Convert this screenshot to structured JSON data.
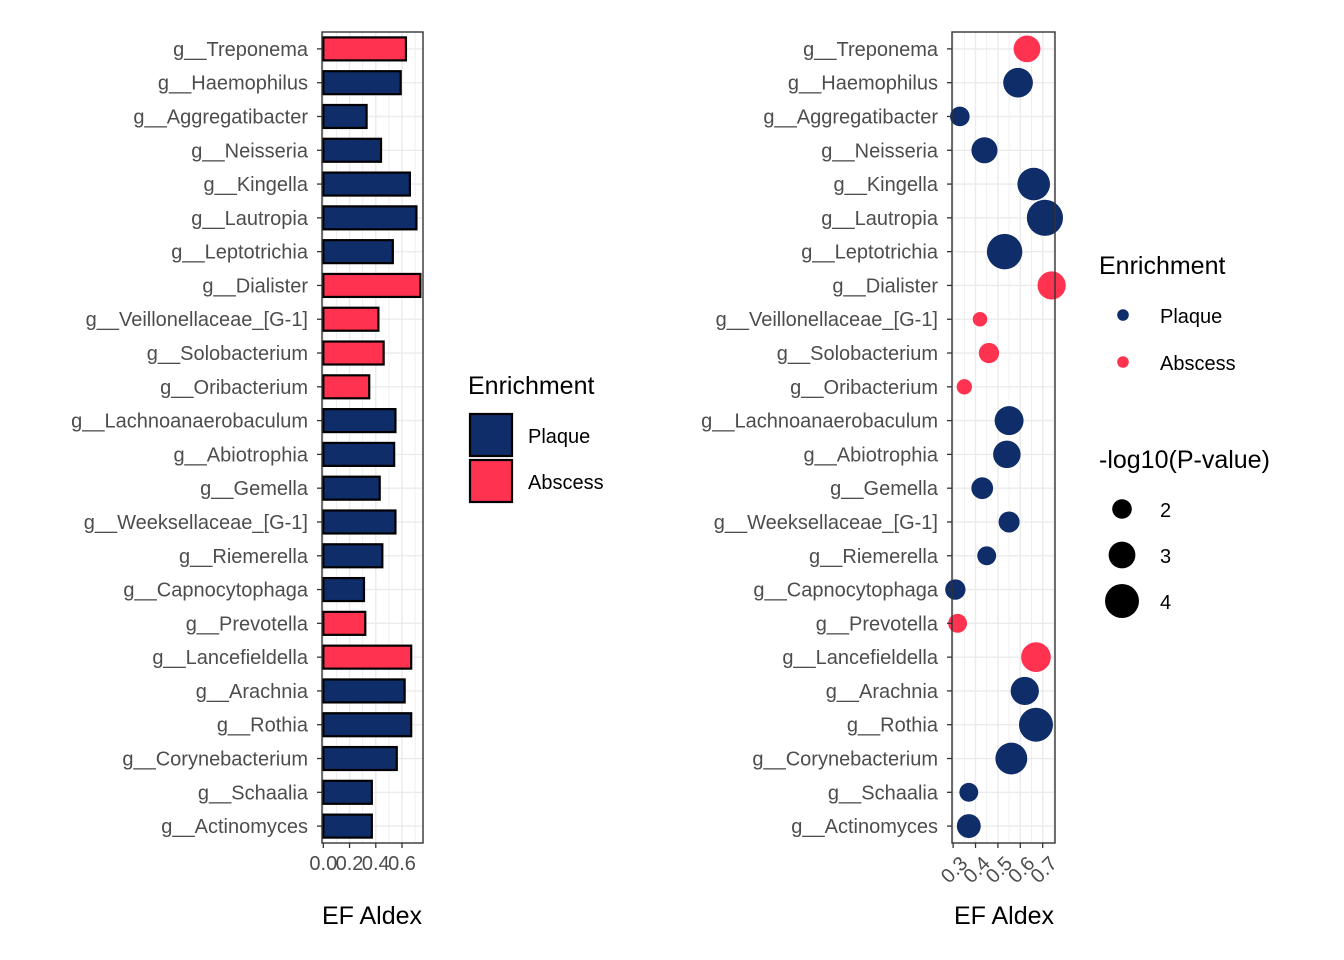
{
  "chart_data": [
    {
      "type": "bar",
      "orientation": "horizontal",
      "xlabel": "EF Aldex",
      "ylabel": "",
      "xlim": [
        -0.01,
        0.76
      ],
      "x_ticks": [
        "0.0",
        "0.2",
        "0.4",
        "0.6"
      ],
      "grid": true,
      "legend_placement": "right",
      "legend": {
        "title": "Enrichment",
        "entries": [
          {
            "label": "Plaque",
            "color": "#0f2d69"
          },
          {
            "label": "Abscess",
            "color": "#ff3250"
          }
        ]
      },
      "categories": [
        "g__Treponema",
        "g__Haemophilus",
        "g__Aggregatibacter",
        "g__Neisseria",
        "g__Kingella",
        "g__Lautropia",
        "g__Leptotrichia",
        "g__Dialister",
        "g__Veillonellaceae_[G-1]",
        "g__Solobacterium",
        "g__Oribacterium",
        "g__Lachnoanaerobaculum",
        "g__Abiotrophia",
        "g__Gemella",
        "g__Weeksellaceae_[G-1]",
        "g__Riemerella",
        "g__Capnocytophaga",
        "g__Prevotella",
        "g__Lancefieldella",
        "g__Arachnia",
        "g__Rothia",
        "g__Corynebacterium",
        "g__Schaalia",
        "g__Actinomyces"
      ],
      "values": [
        0.63,
        0.59,
        0.33,
        0.44,
        0.66,
        0.71,
        0.53,
        0.74,
        0.42,
        0.46,
        0.35,
        0.55,
        0.54,
        0.43,
        0.55,
        0.45,
        0.31,
        0.32,
        0.67,
        0.62,
        0.67,
        0.56,
        0.37,
        0.37
      ],
      "enrichment": [
        "Abscess",
        "Plaque",
        "Plaque",
        "Plaque",
        "Plaque",
        "Plaque",
        "Plaque",
        "Abscess",
        "Abscess",
        "Abscess",
        "Abscess",
        "Plaque",
        "Plaque",
        "Plaque",
        "Plaque",
        "Plaque",
        "Plaque",
        "Abscess",
        "Abscess",
        "Plaque",
        "Plaque",
        "Plaque",
        "Plaque",
        "Plaque"
      ]
    },
    {
      "type": "scatter",
      "xlabel": "EF Aldex",
      "ylabel": "",
      "xlim": [
        0.295,
        0.755
      ],
      "x_ticks": [
        "0.3",
        "0.4",
        "0.5",
        "0.6",
        "0.7"
      ],
      "x_tick_rotation": 45,
      "grid": true,
      "legend_placement": "right",
      "legend": {
        "color_title": "Enrichment",
        "color_entries": [
          {
            "label": "Plaque",
            "color": "#0f2d69"
          },
          {
            "label": "Abscess",
            "color": "#ff3250"
          }
        ],
        "size_title": "-log10(P-value)",
        "size_entries": [
          {
            "label": "2",
            "value": 2
          },
          {
            "label": "3",
            "value": 3
          },
          {
            "label": "4",
            "value": 4
          }
        ]
      },
      "categories": [
        "g__Treponema",
        "g__Haemophilus",
        "g__Aggregatibacter",
        "g__Neisseria",
        "g__Kingella",
        "g__Lautropia",
        "g__Leptotrichia",
        "g__Dialister",
        "g__Veillonellaceae_[G-1]",
        "g__Solobacterium",
        "g__Oribacterium",
        "g__Lachnoanaerobaculum",
        "g__Abiotrophia",
        "g__Gemella",
        "g__Weeksellaceae_[G-1]",
        "g__Riemerella",
        "g__Capnocytophaga",
        "g__Prevotella",
        "g__Lancefieldella",
        "g__Arachnia",
        "g__Rothia",
        "g__Corynebacterium",
        "g__Schaalia",
        "g__Actinomyces"
      ],
      "x": [
        0.63,
        0.59,
        0.33,
        0.44,
        0.66,
        0.71,
        0.53,
        0.74,
        0.42,
        0.46,
        0.35,
        0.55,
        0.54,
        0.43,
        0.55,
        0.45,
        0.31,
        0.32,
        0.67,
        0.62,
        0.67,
        0.56,
        0.37,
        0.37
      ],
      "neg_log10_p": [
        3.0,
        3.4,
        2.0,
        2.9,
        3.8,
        4.3,
        4.2,
        3.2,
        1.3,
        2.1,
        1.4,
        3.3,
        3.1,
        2.3,
        2.2,
        1.9,
        2.1,
        1.9,
        3.4,
        3.2,
        4.0,
        3.7,
        1.9,
        2.6
      ],
      "enrichment": [
        "Abscess",
        "Plaque",
        "Plaque",
        "Plaque",
        "Plaque",
        "Plaque",
        "Plaque",
        "Abscess",
        "Abscess",
        "Abscess",
        "Abscess",
        "Plaque",
        "Plaque",
        "Plaque",
        "Plaque",
        "Plaque",
        "Plaque",
        "Abscess",
        "Abscess",
        "Plaque",
        "Plaque",
        "Plaque",
        "Plaque",
        "Plaque"
      ]
    }
  ]
}
